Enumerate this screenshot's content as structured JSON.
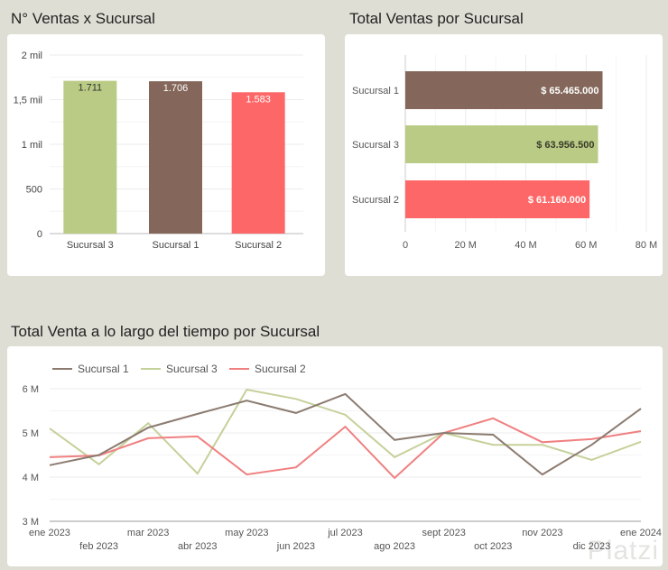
{
  "sections": {
    "count_title": "N° Ventas x Sucursal",
    "total_title": "Total Ventas por Sucursal",
    "time_title": "Total Venta a lo largo del tiempo por Sucursal"
  },
  "colors": {
    "background": "#dfded4",
    "Sucursal 1": "#84675a",
    "Sucursal 2": "#fe6767",
    "Sucursal 3": "#b9cb84",
    "line_Sucursal 1": "#8c7b70",
    "line_Sucursal 2": "#f08080",
    "line_Sucursal 3": "#c5d19a"
  },
  "watermark": "Platzi",
  "chart_data": [
    {
      "type": "bar",
      "orientation": "vertical",
      "title": "N° Ventas x Sucursal",
      "categories": [
        "Sucursal 3",
        "Sucursal 1",
        "Sucursal 2"
      ],
      "values": [
        1711,
        1706,
        1583
      ],
      "data_labels": [
        "1.711",
        "1.706",
        "1.583"
      ],
      "ylim": [
        0,
        2000
      ],
      "yticks": [
        0,
        500,
        1000,
        1500,
        2000
      ],
      "ytick_labels": [
        "0",
        "500",
        "1 mil",
        "1,5 mil",
        "2 mil"
      ],
      "xlabel": "",
      "ylabel": "",
      "grid": true,
      "legend": "none"
    },
    {
      "type": "bar",
      "orientation": "horizontal",
      "title": "Total Ventas por Sucursal",
      "categories": [
        "Sucursal 1",
        "Sucursal 3",
        "Sucursal 2"
      ],
      "values": [
        65465000,
        63956500,
        61160000
      ],
      "data_labels": [
        "$ 65.465.000",
        "$ 63.956.500",
        "$ 61.160.000"
      ],
      "xlim": [
        0,
        80000000
      ],
      "xticks": [
        0,
        20000000,
        40000000,
        60000000,
        80000000
      ],
      "xtick_labels": [
        "0",
        "20 M",
        "40 M",
        "60 M",
        "80 M"
      ],
      "xlabel": "",
      "ylabel": "",
      "grid": true,
      "legend": "none"
    },
    {
      "type": "line",
      "title": "Total Venta a lo largo del tiempo por Sucursal",
      "x": [
        "ene 2023",
        "feb 2023",
        "mar 2023",
        "abr 2023",
        "may 2023",
        "jun 2023",
        "jul 2023",
        "ago 2023",
        "sept 2023",
        "oct 2023",
        "nov 2023",
        "dic 2023",
        "ene 2024"
      ],
      "series": [
        {
          "name": "Sucursal 1",
          "values": [
            4.27,
            4.5,
            5.12,
            5.43,
            5.73,
            5.45,
            5.88,
            4.84,
            5.0,
            4.96,
            4.06,
            4.73,
            5.55
          ]
        },
        {
          "name": "Sucursal 3",
          "values": [
            5.1,
            4.29,
            5.22,
            4.08,
            5.98,
            5.77,
            5.41,
            4.45,
            5.0,
            4.73,
            4.73,
            4.39,
            4.8
          ]
        },
        {
          "name": "Sucursal 2",
          "values": [
            4.45,
            4.49,
            4.88,
            4.92,
            4.06,
            4.22,
            5.14,
            3.98,
            5.0,
            5.33,
            4.79,
            4.86,
            5.04
          ]
        }
      ],
      "value_unit": "M",
      "ylim": [
        3,
        6
      ],
      "yticks": [
        3,
        4,
        5,
        6
      ],
      "ytick_labels": [
        "3 M",
        "4 M",
        "5 M",
        "6 M"
      ],
      "xlabel": "",
      "ylabel": "",
      "grid": true,
      "legend": "top-left"
    }
  ]
}
